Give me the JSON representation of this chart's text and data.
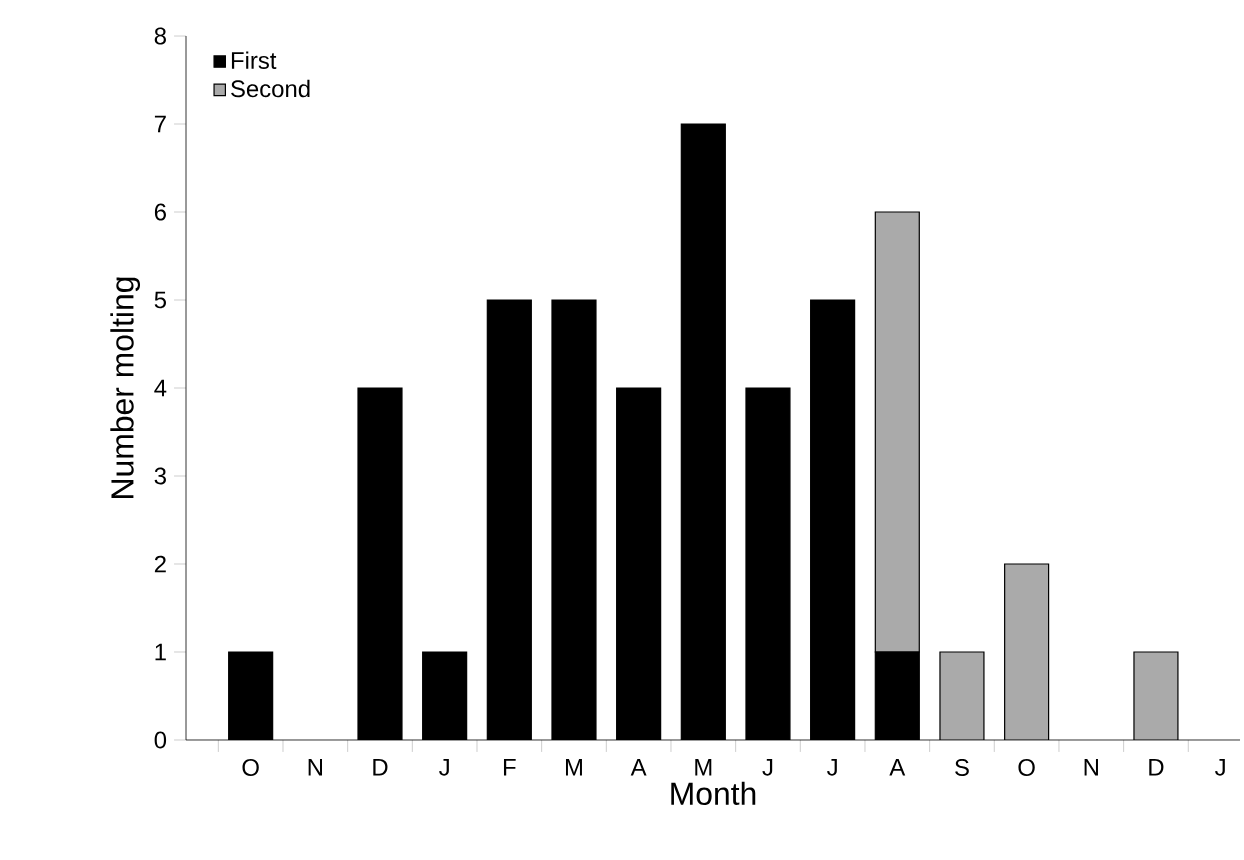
{
  "chart_data": {
    "type": "bar",
    "xlabel": "Month",
    "ylabel": "Number molting",
    "categories": [
      "O",
      "N",
      "D",
      "J",
      "F",
      "M",
      "A",
      "M",
      "J",
      "J",
      "A",
      "S",
      "O",
      "N",
      "D",
      "J"
    ],
    "series": [
      {
        "name": "First",
        "color": "#000000",
        "values": [
          1,
          0,
          4,
          1,
          5,
          5,
          4,
          7,
          4,
          5,
          1,
          0,
          0,
          0,
          0,
          0
        ]
      },
      {
        "name": "Second",
        "color": "#aaaaaa",
        "values": [
          0,
          0,
          0,
          0,
          0,
          0,
          0,
          0,
          0,
          0,
          5,
          1,
          2,
          0,
          1,
          0
        ]
      }
    ],
    "stacked": true,
    "ylim": [
      0,
      8
    ],
    "yticks": [
      0,
      1,
      2,
      3,
      4,
      5,
      6,
      7,
      8
    ],
    "legend": "top left"
  }
}
